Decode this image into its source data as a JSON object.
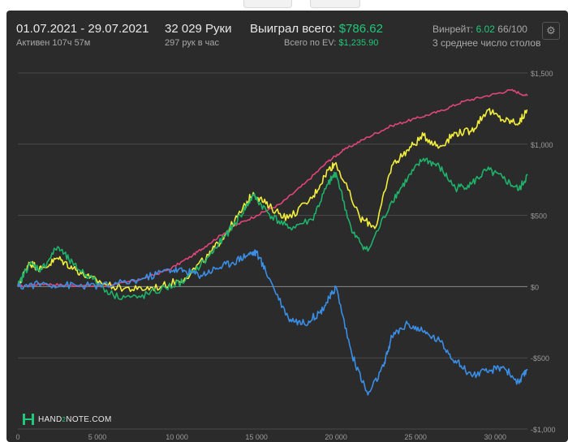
{
  "header": {
    "date_range": "01.07.2021 - 29.07.2021",
    "active": "Активен 107ч 57м",
    "hands": "32 029 Руки",
    "hands_per_hour": "297 рук в час",
    "won_label": "Выиграл всего:",
    "won_value": "$786.62",
    "ev_label": "Всего по EV:",
    "ev_value": "$1,235.90",
    "winrate_label": "Винрейт:",
    "winrate_value": "6.02",
    "winrate_suffix": "66/100",
    "tables_text": "3 среднее число столов"
  },
  "logo": {
    "text_a": "HAND",
    "text_b": "2",
    "text_c": "NOTE.COM"
  },
  "icons": {
    "settings": "gear-icon"
  },
  "colors": {
    "background": "#2b2b2b",
    "grid": "#4a4a4a",
    "zero_line": "#8a8a8a",
    "accent": "#22c77a"
  },
  "chart_data": {
    "type": "line",
    "x_tick_labels": [
      "0",
      "5 000",
      "10 000",
      "15 000",
      "20 000",
      "25 000",
      "30 000"
    ],
    "x_ticks": [
      0,
      5000,
      10000,
      15000,
      20000,
      25000,
      30000
    ],
    "y_tick_labels": [
      "$1,500",
      "$1,000",
      "$500",
      "$0",
      "-$500",
      "-$1,000"
    ],
    "y_ticks": [
      1500,
      1000,
      500,
      0,
      -500,
      -1000
    ],
    "xlim": [
      0,
      32029
    ],
    "ylim": [
      -1000,
      1500
    ],
    "grid": true,
    "series": [
      {
        "color": "#e0467a",
        "x": [
          0,
          1500,
          3000,
          4500,
          6000,
          8000,
          9500,
          11000,
          12000,
          13500,
          15000,
          16500,
          18000,
          19500,
          20500,
          22000,
          23500,
          25000,
          26500,
          28000,
          29500,
          31000,
          32029
        ],
        "y": [
          0,
          20,
          10,
          5,
          10,
          60,
          120,
          220,
          300,
          420,
          500,
          580,
          720,
          880,
          960,
          1050,
          1130,
          1180,
          1230,
          1300,
          1340,
          1380,
          1340
        ]
      },
      {
        "color": "#f2ee3c",
        "x": [
          0,
          700,
          1500,
          2500,
          3500,
          4500,
          6000,
          7500,
          9000,
          10500,
          12000,
          13000,
          14000,
          14800,
          15800,
          17000,
          18500,
          19500,
          20000,
          21500,
          22500,
          23500,
          24500,
          25500,
          26500,
          27500,
          28500,
          29500,
          30500,
          31500,
          32029
        ],
        "y": [
          0,
          170,
          120,
          200,
          130,
          60,
          0,
          -20,
          0,
          60,
          220,
          360,
          520,
          660,
          560,
          480,
          620,
          820,
          870,
          480,
          420,
          850,
          960,
          1060,
          980,
          1080,
          1090,
          1240,
          1170,
          1150,
          1240
        ]
      },
      {
        "color": "#1fb26a",
        "x": [
          0,
          700,
          1500,
          2500,
          3500,
          4500,
          6000,
          7500,
          9000,
          10500,
          12000,
          13000,
          14000,
          14800,
          15800,
          17000,
          18500,
          19500,
          20000,
          21000,
          22000,
          23500,
          24500,
          25500,
          26500,
          27500,
          28500,
          29500,
          30500,
          31500,
          32029
        ],
        "y": [
          0,
          160,
          120,
          280,
          150,
          70,
          -60,
          -80,
          -20,
          40,
          210,
          350,
          500,
          640,
          510,
          410,
          470,
          720,
          800,
          380,
          250,
          600,
          760,
          900,
          840,
          690,
          720,
          820,
          760,
          680,
          780
        ]
      },
      {
        "color": "#3a8ee6",
        "x": [
          0,
          1500,
          3000,
          4500,
          6000,
          8000,
          9500,
          10500,
          11500,
          12500,
          13500,
          14500,
          15000,
          15800,
          17000,
          18000,
          19000,
          19600,
          20000,
          21000,
          22000,
          23000,
          23500,
          24500,
          25500,
          26500,
          27500,
          28500,
          29500,
          30500,
          31500,
          32029
        ],
        "y": [
          0,
          20,
          10,
          5,
          10,
          60,
          120,
          110,
          80,
          130,
          170,
          230,
          240,
          60,
          -220,
          -260,
          -180,
          -80,
          0,
          -480,
          -760,
          -560,
          -350,
          -260,
          -320,
          -380,
          -520,
          -620,
          -600,
          -560,
          -680,
          -580
        ]
      }
    ]
  }
}
